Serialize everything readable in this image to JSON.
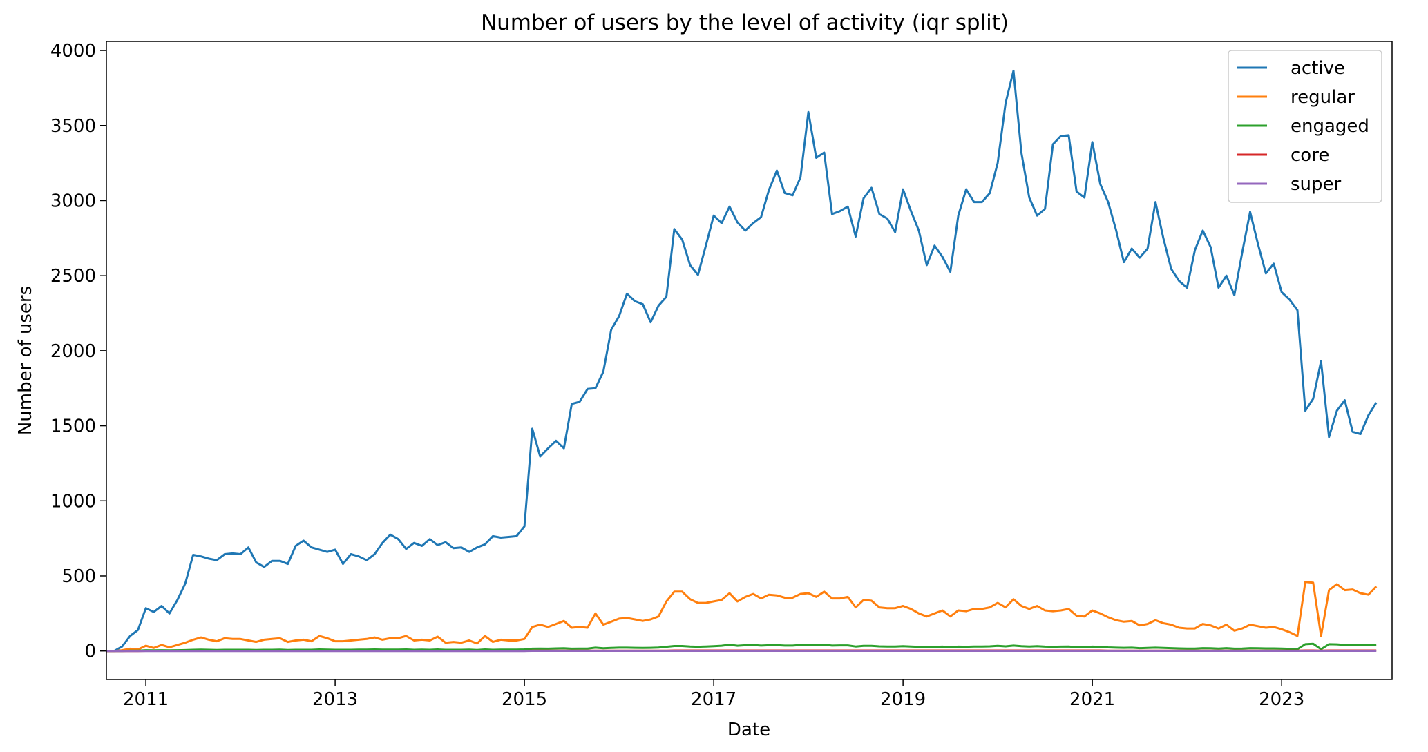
{
  "chart_data": {
    "type": "line",
    "title": "Number of users by the level of activity (iqr split)",
    "xlabel": "Date",
    "ylabel": "Number of users",
    "x_ticks": [
      "2011",
      "2013",
      "2015",
      "2017",
      "2019",
      "2021",
      "2023"
    ],
    "y_ticks": [
      "0",
      "500",
      "1000",
      "1500",
      "2000",
      "2500",
      "3000",
      "3500",
      "4000"
    ],
    "xlim": [
      "2010-08",
      "2024-03"
    ],
    "ylim": [
      -190,
      4060
    ],
    "x_start": "2010-08",
    "grid": false,
    "legend_position": "top-right",
    "series": [
      {
        "name": "active",
        "color": "#1f77b4",
        "values": [
          0,
          0,
          30,
          100,
          140,
          285,
          260,
          300,
          250,
          340,
          450,
          640,
          630,
          615,
          605,
          645,
          650,
          645,
          690,
          590,
          560,
          600,
          600,
          580,
          700,
          735,
          690,
          675,
          660,
          675,
          580,
          645,
          630,
          605,
          645,
          720,
          775,
          745,
          680,
          720,
          700,
          745,
          705,
          725,
          685,
          690,
          660,
          690,
          710,
          765,
          755,
          760,
          765,
          830,
          1480,
          1295,
          1350,
          1400,
          1350,
          1645,
          1660,
          1745,
          1750,
          1860,
          2140,
          2230,
          2380,
          2330,
          2310,
          2190,
          2300,
          2360,
          2810,
          2740,
          2570,
          2505,
          2700,
          2900,
          2850,
          2960,
          2855,
          2800,
          2850,
          2890,
          3070,
          3200,
          3050,
          3035,
          3155,
          3590,
          3285,
          3320,
          2910,
          2930,
          2960,
          2760,
          3015,
          3085,
          2910,
          2880,
          2790,
          3075,
          2930,
          2800,
          2570,
          2700,
          2625,
          2525,
          2900,
          3075,
          2990,
          2990,
          3050,
          3250,
          3650,
          3865,
          3320,
          3020,
          2900,
          2945,
          3375,
          3430,
          3435,
          3060,
          3020,
          3390,
          3110,
          2990,
          2805,
          2590,
          2680,
          2620,
          2680,
          2990,
          2750,
          2545,
          2465,
          2420,
          2670,
          2800,
          2690,
          2420,
          2500,
          2370,
          2655,
          2925,
          2710,
          2515,
          2580,
          2390,
          2340,
          2270,
          1600,
          1680,
          1930,
          1425,
          1600,
          1670,
          1460,
          1445,
          1570,
          1655
        ]
      },
      {
        "name": "regular",
        "color": "#ff7f0e",
        "values": [
          0,
          0,
          5,
          15,
          10,
          35,
          20,
          40,
          25,
          40,
          55,
          75,
          90,
          75,
          65,
          85,
          80,
          80,
          70,
          60,
          75,
          80,
          85,
          60,
          70,
          75,
          65,
          100,
          85,
          65,
          65,
          70,
          75,
          80,
          90,
          75,
          85,
          85,
          100,
          70,
          75,
          70,
          95,
          55,
          60,
          55,
          70,
          50,
          100,
          60,
          75,
          70,
          70,
          80,
          160,
          175,
          160,
          180,
          200,
          155,
          160,
          155,
          250,
          175,
          195,
          215,
          220,
          210,
          200,
          210,
          230,
          330,
          395,
          395,
          345,
          320,
          320,
          330,
          340,
          385,
          330,
          360,
          380,
          350,
          375,
          370,
          355,
          355,
          380,
          385,
          360,
          395,
          350,
          350,
          360,
          290,
          340,
          335,
          290,
          285,
          285,
          300,
          280,
          250,
          230,
          250,
          270,
          230,
          270,
          265,
          280,
          280,
          290,
          320,
          290,
          345,
          300,
          280,
          300,
          270,
          265,
          270,
          280,
          235,
          230,
          270,
          250,
          225,
          205,
          195,
          200,
          170,
          180,
          205,
          185,
          175,
          155,
          150,
          150,
          180,
          170,
          150,
          175,
          135,
          150,
          175,
          165,
          155,
          160,
          145,
          125,
          100,
          460,
          455,
          100,
          405,
          445,
          405,
          410,
          385,
          375,
          430
        ]
      },
      {
        "name": "engaged",
        "color": "#2ca02c",
        "values": [
          0,
          0,
          0,
          2,
          2,
          5,
          4,
          5,
          4,
          5,
          6,
          8,
          9,
          8,
          7,
          8,
          8,
          8,
          8,
          7,
          8,
          8,
          9,
          7,
          8,
          8,
          8,
          10,
          9,
          8,
          8,
          8,
          9,
          9,
          10,
          9,
          9,
          9,
          10,
          8,
          9,
          8,
          10,
          8,
          8,
          8,
          9,
          7,
          10,
          8,
          9,
          9,
          9,
          10,
          15,
          16,
          15,
          17,
          18,
          15,
          16,
          16,
          22,
          18,
          20,
          22,
          22,
          21,
          20,
          21,
          23,
          28,
          33,
          33,
          30,
          28,
          30,
          32,
          35,
          42,
          35,
          38,
          40,
          36,
          38,
          39,
          36,
          36,
          40,
          40,
          38,
          42,
          36,
          37,
          37,
          30,
          34,
          34,
          31,
          30,
          30,
          32,
          30,
          27,
          25,
          27,
          29,
          25,
          29,
          28,
          30,
          30,
          31,
          34,
          31,
          36,
          32,
          30,
          32,
          29,
          28,
          29,
          30,
          25,
          25,
          29,
          27,
          24,
          22,
          21,
          22,
          19,
          20,
          22,
          20,
          19,
          17,
          16,
          16,
          19,
          18,
          16,
          19,
          15,
          16,
          19,
          18,
          17,
          17,
          16,
          14,
          12,
          45,
          48,
          12,
          45,
          44,
          40,
          42,
          40,
          38,
          41
        ]
      },
      {
        "name": "core",
        "color": "#d62728",
        "values": [
          0,
          0,
          0,
          0,
          0,
          1,
          1,
          1,
          1,
          1,
          1,
          1,
          1,
          1,
          1,
          1,
          1,
          1,
          1,
          1,
          1,
          1,
          1,
          1,
          1,
          1,
          1,
          1,
          1,
          1,
          1,
          1,
          1,
          1,
          1,
          1,
          1,
          1,
          1,
          1,
          1,
          1,
          1,
          1,
          1,
          1,
          1,
          1,
          1,
          1,
          1,
          1,
          1,
          1,
          2,
          2,
          2,
          2,
          2,
          2,
          2,
          2,
          2,
          2,
          2,
          2,
          2,
          2,
          2,
          2,
          2,
          2,
          3,
          3,
          3,
          3,
          3,
          3,
          3,
          3,
          3,
          3,
          3,
          3,
          3,
          3,
          3,
          3,
          3,
          3,
          3,
          3,
          3,
          3,
          3,
          3,
          3,
          3,
          3,
          3,
          3,
          3,
          3,
          3,
          3,
          3,
          3,
          3,
          3,
          3,
          3,
          3,
          3,
          3,
          3,
          3,
          3,
          3,
          3,
          3,
          3,
          3,
          3,
          3,
          3,
          3,
          3,
          2,
          2,
          2,
          2,
          2,
          2,
          2,
          2,
          2,
          2,
          2,
          2,
          2,
          2,
          2,
          2,
          2,
          2,
          2,
          2,
          2,
          2,
          2,
          2,
          2,
          3,
          3,
          2,
          3,
          3,
          3,
          3,
          3,
          3,
          3
        ]
      },
      {
        "name": "super",
        "color": "#9467bd",
        "values": [
          0,
          0,
          0,
          0,
          0,
          0,
          0,
          0,
          0,
          0,
          0,
          0,
          0,
          0,
          0,
          0,
          0,
          0,
          0,
          0,
          0,
          0,
          0,
          0,
          0,
          0,
          0,
          0,
          0,
          0,
          0,
          0,
          0,
          0,
          0,
          0,
          0,
          0,
          0,
          0,
          0,
          0,
          0,
          0,
          0,
          0,
          0,
          0,
          0,
          0,
          0,
          0,
          0,
          0,
          1,
          1,
          1,
          1,
          1,
          1,
          1,
          1,
          1,
          1,
          1,
          1,
          1,
          1,
          1,
          1,
          1,
          1,
          1,
          1,
          1,
          1,
          1,
          1,
          1,
          1,
          1,
          1,
          1,
          1,
          1,
          1,
          1,
          1,
          1,
          1,
          1,
          1,
          1,
          1,
          1,
          1,
          1,
          1,
          1,
          1,
          1,
          1,
          1,
          1,
          1,
          1,
          1,
          1,
          1,
          1,
          1,
          1,
          1,
          1,
          1,
          1,
          1,
          1,
          1,
          1,
          1,
          1,
          1,
          1,
          1,
          1,
          1,
          1,
          1,
          1,
          1,
          1,
          1,
          1,
          1,
          1,
          1,
          1,
          1,
          1,
          1,
          1,
          1,
          1,
          1,
          1,
          1,
          1,
          1,
          1,
          1,
          1,
          1,
          1,
          1,
          1,
          1,
          1,
          1,
          1,
          1,
          1
        ]
      }
    ]
  }
}
